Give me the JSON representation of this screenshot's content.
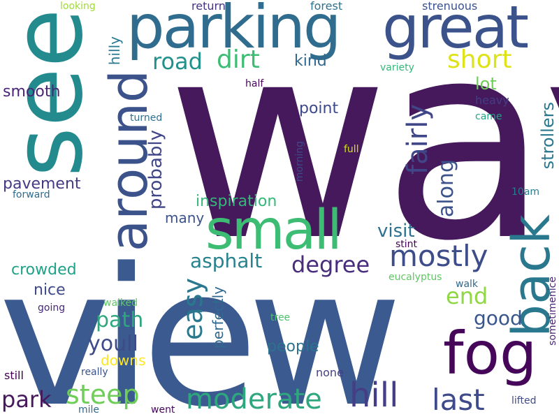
{
  "words": [
    {
      "text": "way",
      "color": "#46185c"
    },
    {
      "text": "view",
      "color": "#3b5b90"
    },
    {
      "text": "see",
      "color": "#238b8d"
    },
    {
      "text": "parking",
      "color": "#2f6c8e"
    },
    {
      "text": "great",
      "color": "#3b528b"
    },
    {
      "text": "small",
      "color": "#3dbc74"
    },
    {
      "text": "around",
      "color": "#3b528b"
    },
    {
      "text": "back",
      "color": "#2a788e"
    },
    {
      "text": "fog",
      "color": "#46075a"
    },
    {
      "text": "mostly",
      "color": "#3d4d8a"
    },
    {
      "text": "moderate",
      "color": "#2ea77f"
    },
    {
      "text": "hill",
      "color": "#433e85"
    },
    {
      "text": "last",
      "color": "#3e4a89"
    },
    {
      "text": "steep",
      "color": "#6ece58"
    },
    {
      "text": "easy",
      "color": "#2a788e"
    },
    {
      "text": "fairly",
      "color": "#404788"
    },
    {
      "text": "degree",
      "color": "#472d7b"
    },
    {
      "text": "asphalt",
      "color": "#26828e"
    },
    {
      "text": "road",
      "color": "#21918c"
    },
    {
      "text": "dirt",
      "color": "#3dbc74"
    },
    {
      "text": "short",
      "color": "#dde318"
    },
    {
      "text": "park",
      "color": "#46185c"
    },
    {
      "text": "youll",
      "color": "#3e4a89"
    },
    {
      "text": "path",
      "color": "#2ea77f"
    },
    {
      "text": "along",
      "color": "#3b528b"
    },
    {
      "text": "probably",
      "color": "#404688"
    },
    {
      "text": "end",
      "color": "#8fd744"
    },
    {
      "text": "good",
      "color": "#39568c"
    },
    {
      "text": "visit",
      "color": "#2d718e"
    },
    {
      "text": "strollers",
      "color": "#2a788e"
    },
    {
      "text": "inspiration",
      "color": "#35b779"
    },
    {
      "text": "kind",
      "color": "#31688e"
    },
    {
      "text": "lot",
      "color": "#6ece58"
    },
    {
      "text": "point",
      "color": "#3e4989"
    },
    {
      "text": "smooth",
      "color": "#482576"
    },
    {
      "text": "pavement",
      "color": "#443a83"
    },
    {
      "text": "crowded",
      "color": "#1fa187"
    },
    {
      "text": "people",
      "color": "#2c728e"
    },
    {
      "text": "perfectly",
      "color": "#31688e"
    },
    {
      "text": "many",
      "color": "#3b528b"
    },
    {
      "text": "hilly",
      "color": "#2a788e"
    },
    {
      "text": "nice",
      "color": "#3e4a89"
    },
    {
      "text": "downs",
      "color": "#fde725"
    },
    {
      "text": "heavy",
      "color": "#433e85"
    },
    {
      "text": "forest",
      "color": "#2c728e"
    },
    {
      "text": "return",
      "color": "#46337f"
    },
    {
      "text": "strenuous",
      "color": "#3b528b"
    },
    {
      "text": "variety",
      "color": "#35b779"
    },
    {
      "text": "looking",
      "color": "#a0da39"
    },
    {
      "text": "half",
      "color": "#46075a"
    },
    {
      "text": "turned",
      "color": "#2e6e8e"
    },
    {
      "text": "came",
      "color": "#21a585"
    },
    {
      "text": "morning",
      "color": "#3e4a89"
    },
    {
      "text": "full",
      "color": "#d0e11c"
    },
    {
      "text": "forward",
      "color": "#2f6c8e"
    },
    {
      "text": "10am",
      "color": "#287d8e"
    },
    {
      "text": "stint",
      "color": "#440154"
    },
    {
      "text": "eucalyptus",
      "color": "#5ec962"
    },
    {
      "text": "walk",
      "color": "#31688e"
    },
    {
      "text": "sometimenice",
      "color": "#482576"
    },
    {
      "text": "walked",
      "color": "#5ec962"
    },
    {
      "text": "going",
      "color": "#482878"
    },
    {
      "text": "tree",
      "color": "#4ac16d"
    },
    {
      "text": "still",
      "color": "#440154"
    },
    {
      "text": "really",
      "color": "#3b528b"
    },
    {
      "text": "none",
      "color": "#433e85"
    },
    {
      "text": "mile",
      "color": "#31688e"
    },
    {
      "text": "went",
      "color": "#46085c"
    },
    {
      "text": "lifted",
      "color": "#3e4a89"
    }
  ]
}
